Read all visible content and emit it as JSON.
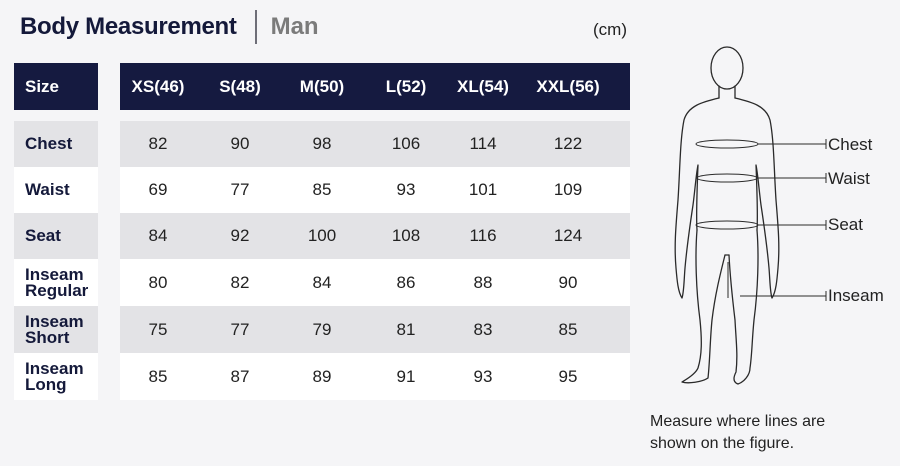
{
  "header": {
    "title": "Body Measurement",
    "subtitle": "Man",
    "unit": "(cm)"
  },
  "table": {
    "size_header": "Size",
    "columns": [
      "XS(46)",
      "S(48)",
      "M(50)",
      "L(52)",
      "XL(54)",
      "XXL(56)"
    ],
    "rows": [
      {
        "label_lines": [
          "Chest"
        ],
        "values": [
          "82",
          "90",
          "98",
          "106",
          "114",
          "122"
        ]
      },
      {
        "label_lines": [
          "Waist"
        ],
        "values": [
          "69",
          "77",
          "85",
          "93",
          "101",
          "109"
        ]
      },
      {
        "label_lines": [
          "Seat"
        ],
        "values": [
          "84",
          "92",
          "100",
          "108",
          "116",
          "124"
        ]
      },
      {
        "label_lines": [
          "Inseam",
          "Regular"
        ],
        "values": [
          "80",
          "82",
          "84",
          "86",
          "88",
          "90"
        ]
      },
      {
        "label_lines": [
          "Inseam",
          "Short"
        ],
        "values": [
          "75",
          "77",
          "79",
          "81",
          "83",
          "85"
        ]
      },
      {
        "label_lines": [
          "Inseam",
          "Long"
        ],
        "values": [
          "85",
          "87",
          "89",
          "91",
          "93",
          "95"
        ]
      }
    ]
  },
  "figure": {
    "labels": {
      "chest": "Chest",
      "waist": "Waist",
      "seat": "Seat",
      "inseam": "Inseam"
    },
    "caption_line1": "Measure where lines are",
    "caption_line2": "shown on the figure."
  }
}
